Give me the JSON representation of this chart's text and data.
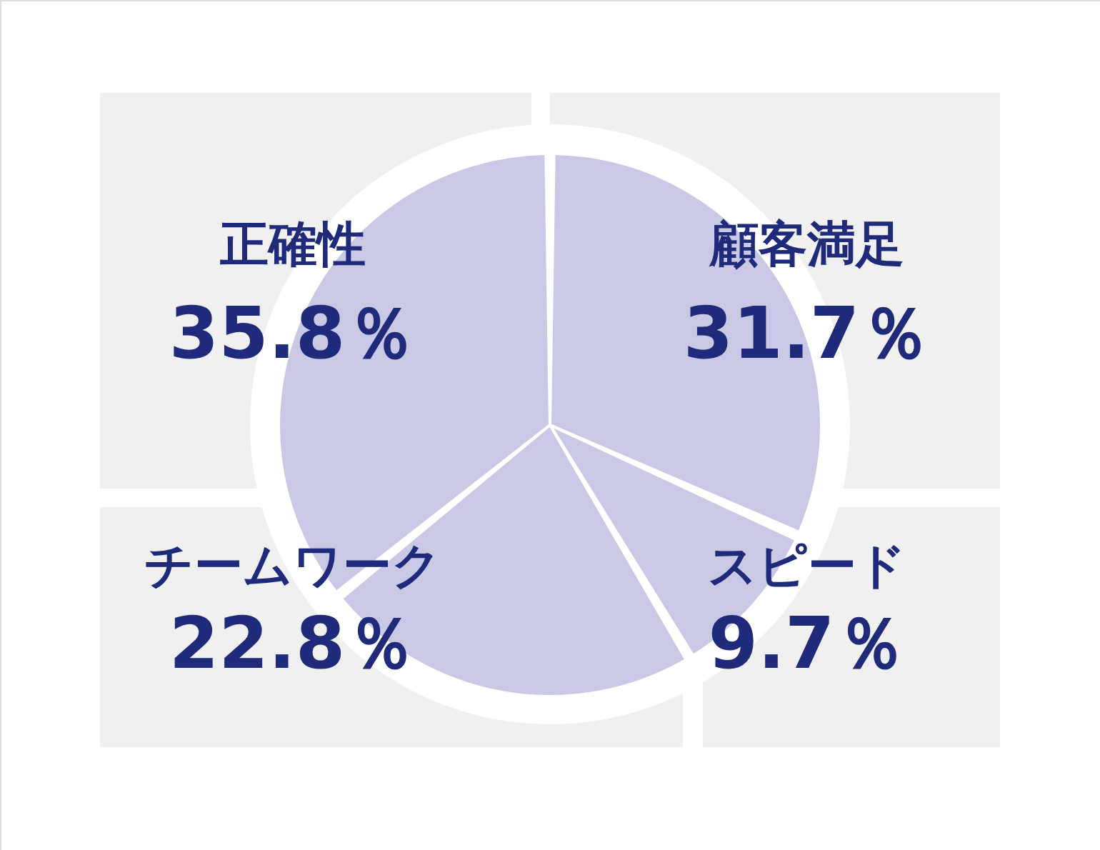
{
  "chart_data": {
    "type": "pie",
    "categories": [
      "顧客満足",
      "スピード",
      "チームワーク",
      "正確性"
    ],
    "values": [
      31.7,
      9.7,
      22.8,
      35.8
    ],
    "colors": [
      "#c9c9e5",
      "#c9c9e5",
      "#c9c9e5",
      "#c9c9e5"
    ],
    "value_labels": [
      "31.7％",
      "9.7％",
      "22.8％",
      "35.8％"
    ]
  }
}
